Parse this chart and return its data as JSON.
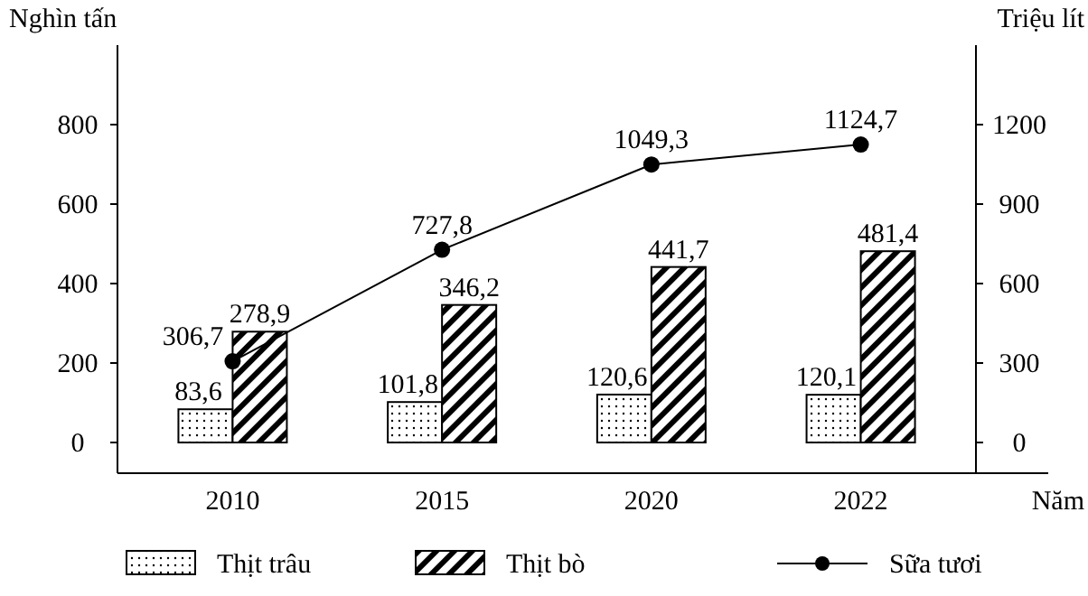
{
  "chart_data": {
    "type": "bar",
    "xlabel": "Năm",
    "ylabel": "Nghìn tấn",
    "y2label": "Triệu lít",
    "categories": [
      "2010",
      "2015",
      "2020",
      "2022"
    ],
    "series": [
      {
        "name": "Thịt trâu",
        "color": "#000000",
        "values": [
          83.6,
          101.8,
          120.6,
          120.1
        ],
        "value_labels": [
          "83,6",
          "101,8",
          "120,6",
          "120,1"
        ]
      },
      {
        "name": "Thịt bò",
        "color": "#000000",
        "values": [
          278.9,
          346.2,
          441.7,
          481.4
        ],
        "value_labels": [
          "278,9",
          "346,2",
          "441,7",
          "481,4"
        ]
      },
      {
        "name": "Sữa tươi",
        "type": "line",
        "axis": "y2",
        "marker": "circle",
        "color": "#000000",
        "values": [
          306.7,
          727.8,
          1049.3,
          1124.7
        ],
        "value_labels": [
          "306,7",
          "727,8",
          "1049,3",
          "1124,7"
        ]
      }
    ],
    "ylim": [
      0,
      1000
    ],
    "yticks": [
      0,
      200,
      400,
      600,
      800
    ],
    "y2lim": [
      0,
      1500
    ],
    "y2ticks": [
      0,
      300,
      600,
      900,
      1200
    ],
    "grid": false,
    "legend": "bottom"
  }
}
